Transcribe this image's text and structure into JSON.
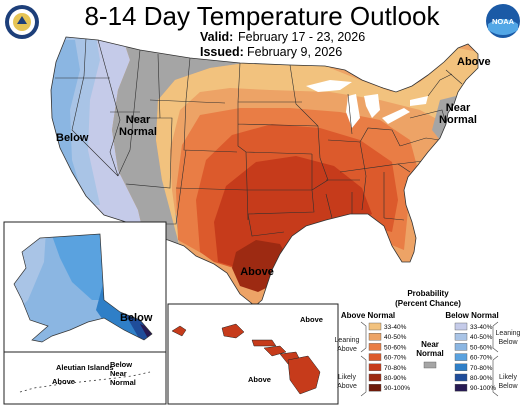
{
  "header": {
    "title": "8-14 Day Temperature Outlook",
    "valid_label": "Valid:",
    "valid_value": "February 17 - 23, 2026",
    "issued_label": "Issued:",
    "issued_value": "February 9, 2026"
  },
  "logos": {
    "left": "department-of-commerce-seal",
    "right": "NOAA",
    "right_text": "NOAA"
  },
  "map_labels": {
    "west": "Below",
    "mountain": "Near Normal",
    "mountain_line1": "Near",
    "mountain_line2": "Normal",
    "south": "Above",
    "northeast": "Above",
    "east_coast_line1": "Near",
    "east_coast_line2": "Normal",
    "alaska": "Below",
    "aleutian_islands": "Aleutian Islands",
    "aleutian_above": "Above",
    "aleutian_near_line1": "Below",
    "aleutian_near_line2": "Near",
    "aleutian_near_line3": "Normal",
    "hawaii_north": "Above",
    "hawaii_south": "Above"
  },
  "legend": {
    "title_line1": "Probability",
    "title_line2": "(Percent Chance)",
    "above_header": "Above Normal",
    "below_header": "Below Normal",
    "near_line1": "Near",
    "near_line2": "Normal",
    "leaning_above_1": "Leaning",
    "leaning_above_2": "Above",
    "likely_above_1": "Likely",
    "likely_above_2": "Above",
    "leaning_below_1": "Leaning",
    "leaning_below_2": "Below",
    "likely_below_1": "Likely",
    "likely_below_2": "Below",
    "bins": [
      "33-40%",
      "40-50%",
      "50-60%",
      "60-70%",
      "70-80%",
      "80-90%",
      "90-100%"
    ],
    "above_colors": [
      "#f2c27e",
      "#eda366",
      "#e97d45",
      "#dc5a2c",
      "#c63b1b",
      "#9d2a12",
      "#6e1a0a"
    ],
    "below_colors": [
      "#c5cbe9",
      "#a9c4e6",
      "#8bb6e2",
      "#5aa2df",
      "#2f7fc7",
      "#1f4d9a",
      "#271a52"
    ],
    "near_color": "#a5a5a5"
  }
}
